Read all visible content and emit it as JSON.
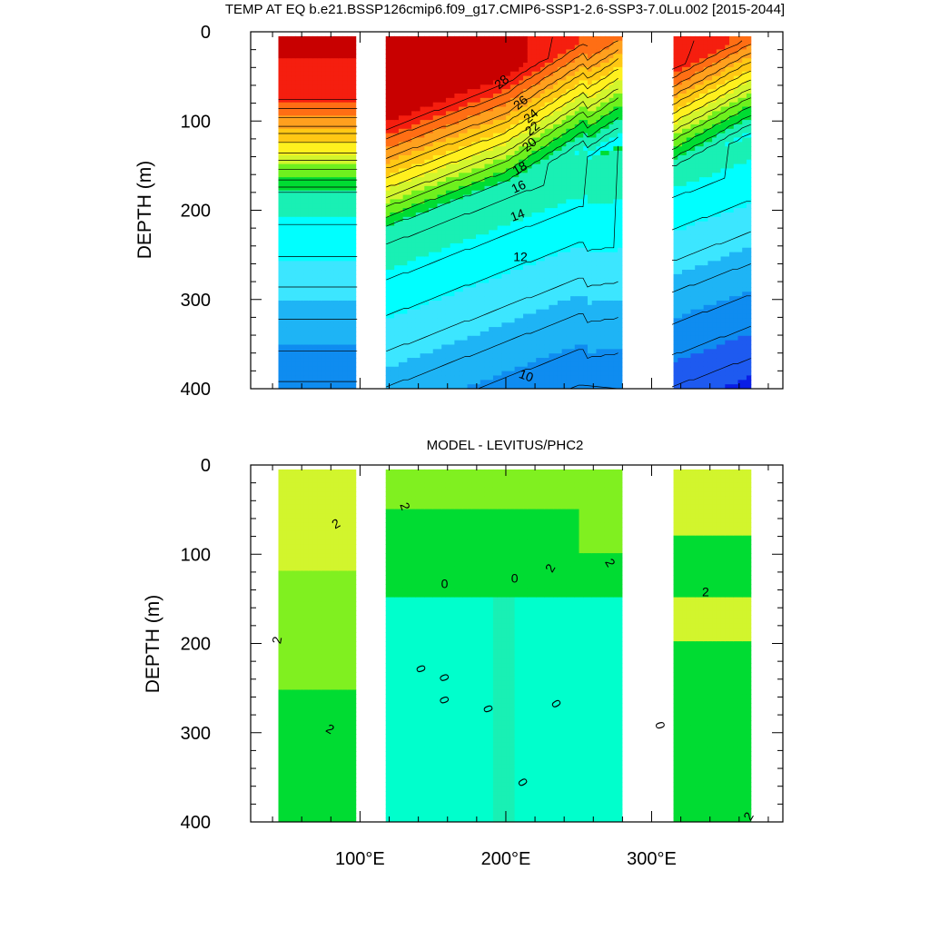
{
  "chart_data": [
    {
      "type": "heatmap",
      "title": "TEMP AT EQ b.e21.BSSP126cmip6.f09_g17.CMIP6-SSP1-2.6-SSP3-7.0Lu.002 [2015-2044]",
      "ylabel": "DEPTH (m)",
      "xlabel": "",
      "xlim": [
        25,
        390
      ],
      "ylim": [
        400,
        0
      ],
      "y_reversed": true,
      "xticks": [
        100,
        200,
        300
      ],
      "xtick_labels": [
        "100°E",
        "200°E",
        "300°E"
      ],
      "yticks": [
        0,
        100,
        200,
        300,
        400
      ],
      "ytick_labels": [
        "0",
        "100",
        "200",
        "300",
        "400"
      ],
      "contour_labels": [
        "28",
        "26",
        "24",
        "22",
        "20",
        "18",
        "16",
        "14",
        "12",
        "10"
      ],
      "levels": [
        8,
        10,
        12,
        14,
        16,
        18,
        20,
        22,
        24,
        26,
        28,
        30
      ],
      "colors": [
        "#0a1ee6",
        "#1e5af0",
        "#0f8cf0",
        "#1eb4f5",
        "#3ce6ff",
        "#00ffff",
        "#19f0b4",
        "#00dc32",
        "#6ef01e",
        "#d2f52d",
        "#fff01e",
        "#ffc814",
        "#ffa01e",
        "#ff6e14",
        "#f51e0f",
        "#c80000"
      ],
      "land_gaps": [
        [
          98,
          118
        ],
        [
          279,
          314
        ]
      ],
      "data_extent": [
        44,
        368
      ],
      "description_values": {
        "surface_west_pacific_max": 29,
        "surface_east_pacific": 24,
        "thermocline_west_depth": 140,
        "thermocline_east_depth": 70,
        "deep_400m": 9.5
      },
      "legend": "none"
    },
    {
      "type": "heatmap",
      "title": "MODEL - LEVITUS/PHC2",
      "ylabel": "DEPTH (m)",
      "xlabel": "",
      "xlim": [
        25,
        390
      ],
      "ylim": [
        400,
        0
      ],
      "y_reversed": true,
      "xticks": [
        100,
        200,
        300
      ],
      "xtick_labels": [
        "100°E",
        "200°E",
        "300°E"
      ],
      "yticks": [
        0,
        100,
        200,
        300,
        400
      ],
      "ytick_labels": [
        "0",
        "100",
        "200",
        "300",
        "400"
      ],
      "contour_labels": [
        "2",
        "0"
      ],
      "levels": [
        -1,
        0,
        1,
        2,
        3,
        4
      ],
      "colors": [
        "#19f0b4",
        "#00ffcc",
        "#00dc32",
        "#80f020",
        "#d2f52d",
        "#fff01e"
      ],
      "land_gaps": [
        [
          98,
          118
        ],
        [
          279,
          314
        ]
      ],
      "data_extent": [
        44,
        368
      ],
      "legend": "none"
    }
  ]
}
